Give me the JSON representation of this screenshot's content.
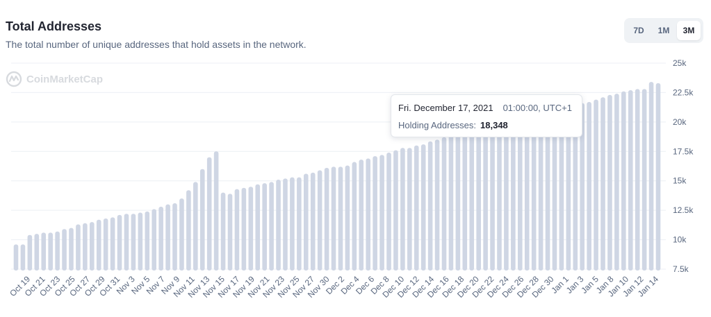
{
  "header": {
    "title": "Total Addresses",
    "subtitle": "The total number of unique addresses that hold assets in the network."
  },
  "range_buttons": [
    {
      "label": "7D",
      "active": false
    },
    {
      "label": "1M",
      "active": false
    },
    {
      "label": "3M",
      "active": true
    }
  ],
  "watermark": {
    "text": "CoinMarketCap",
    "icon": "coinmarketcap-logo-icon"
  },
  "tooltip": {
    "date": "Fri. December 17, 2021",
    "time": "01:00:00, UTC+1",
    "label": "Holding Addresses:",
    "value": "18,348"
  },
  "colors": {
    "bar": "#cfd6e4",
    "grid": "#eceff4",
    "axis_text": "#58667e",
    "accent_button": "#ffffff"
  },
  "chart_data": {
    "type": "bar",
    "title": "Total Addresses",
    "ylim": [
      7500,
      25000
    ],
    "y_ticks": [
      "7.5k",
      "10k",
      "12.5k",
      "15k",
      "17.5k",
      "20k",
      "22.5k",
      "25k"
    ],
    "y_tick_values": [
      7500,
      10000,
      12500,
      15000,
      17500,
      20000,
      22500,
      25000
    ],
    "y_axis_position": "right",
    "grid": true,
    "x_tick_labels": [
      "Oct 19",
      "Oct 21",
      "Oct 23",
      "Oct 25",
      "Oct 27",
      "Oct 29",
      "Oct 31",
      "Nov 3",
      "Nov 5",
      "Nov 7",
      "Nov 9",
      "Nov 11",
      "Nov 13",
      "Nov 15",
      "Nov 17",
      "Nov 19",
      "Nov 21",
      "Nov 23",
      "Nov 25",
      "Nov 27",
      "Nov 30",
      "Dec 2",
      "Dec 4",
      "Dec 6",
      "Dec 8",
      "Dec 10",
      "Dec 12",
      "Dec 14",
      "Dec 16",
      "Dec 18",
      "Dec 20",
      "Dec 22",
      "Dec 24",
      "Dec 26",
      "Dec 28",
      "Dec 30",
      "Jan 1",
      "Jan 3",
      "Jan 5",
      "Jan 8",
      "Jan 10",
      "Jan 12",
      "Jan 14"
    ],
    "values": [
      9600,
      9600,
      10400,
      10500,
      10600,
      10600,
      10700,
      10900,
      11000,
      11300,
      11400,
      11500,
      11700,
      11800,
      11900,
      12100,
      12200,
      12200,
      12300,
      12400,
      12600,
      12800,
      13000,
      13100,
      13500,
      14200,
      14900,
      16000,
      17000,
      17500,
      14000,
      13900,
      14300,
      14400,
      14500,
      14700,
      14800,
      14900,
      15100,
      15200,
      15300,
      15300,
      15600,
      15700,
      15900,
      16100,
      16200,
      16200,
      16300,
      16600,
      16800,
      16900,
      17100,
      17200,
      17400,
      17600,
      17800,
      17800,
      18000,
      18100,
      18348,
      18500,
      18700,
      18900,
      19000,
      19200,
      19300,
      19400,
      19600,
      19800,
      19900,
      20000,
      20200,
      20300,
      20500,
      20600,
      20800,
      20900,
      21000,
      21200,
      21300,
      21500,
      21600,
      21700,
      21900,
      22100,
      22300,
      22400,
      22600,
      22700,
      22800,
      22800,
      23400,
      23300
    ]
  }
}
